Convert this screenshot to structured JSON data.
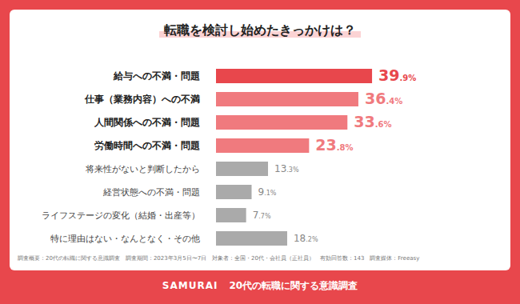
{
  "chart_data": {
    "type": "bar",
    "orientation": "horizontal",
    "title": "転職を検討し始めたきっかけは？",
    "categories": [
      "給与への不満・問題",
      "仕事（業務内容）への不満",
      "人間関係への不満・問題",
      "労働時間への不満・問題",
      "将来性がないと判断したから",
      "経営状態への不満・問題",
      "ライフステージの変化（結婚・出産等）",
      "特に理由はない・なんとなく・その他"
    ],
    "values": [
      39.9,
      36.4,
      33.6,
      23.8,
      13.3,
      9.1,
      7.7,
      18.2
    ],
    "value_labels": [
      "39.9%",
      "36.4%",
      "33.6%",
      "23.8%",
      "13.3%",
      "9.1%",
      "7.7%",
      "18.2%"
    ],
    "colors": [
      "#e8474c",
      "#f07a7e",
      "#f07a7e",
      "#f07a7e",
      "#aaaaaa",
      "#aaaaaa",
      "#aaaaaa",
      "#aaaaaa"
    ],
    "xlim": [
      0,
      45
    ],
    "data_labels": true,
    "tick_labels": "y",
    "grid": false,
    "annotations": [
      "調査概要：20代の転職に関する意識調査　調査期間：2023年3月5日〜7日　対象者：全国・20代・会社員（正社員）　有効回答数：143　調査媒体：Freeasy",
      "SAMURAI",
      "20代の転職に関する意識調査"
    ]
  }
}
